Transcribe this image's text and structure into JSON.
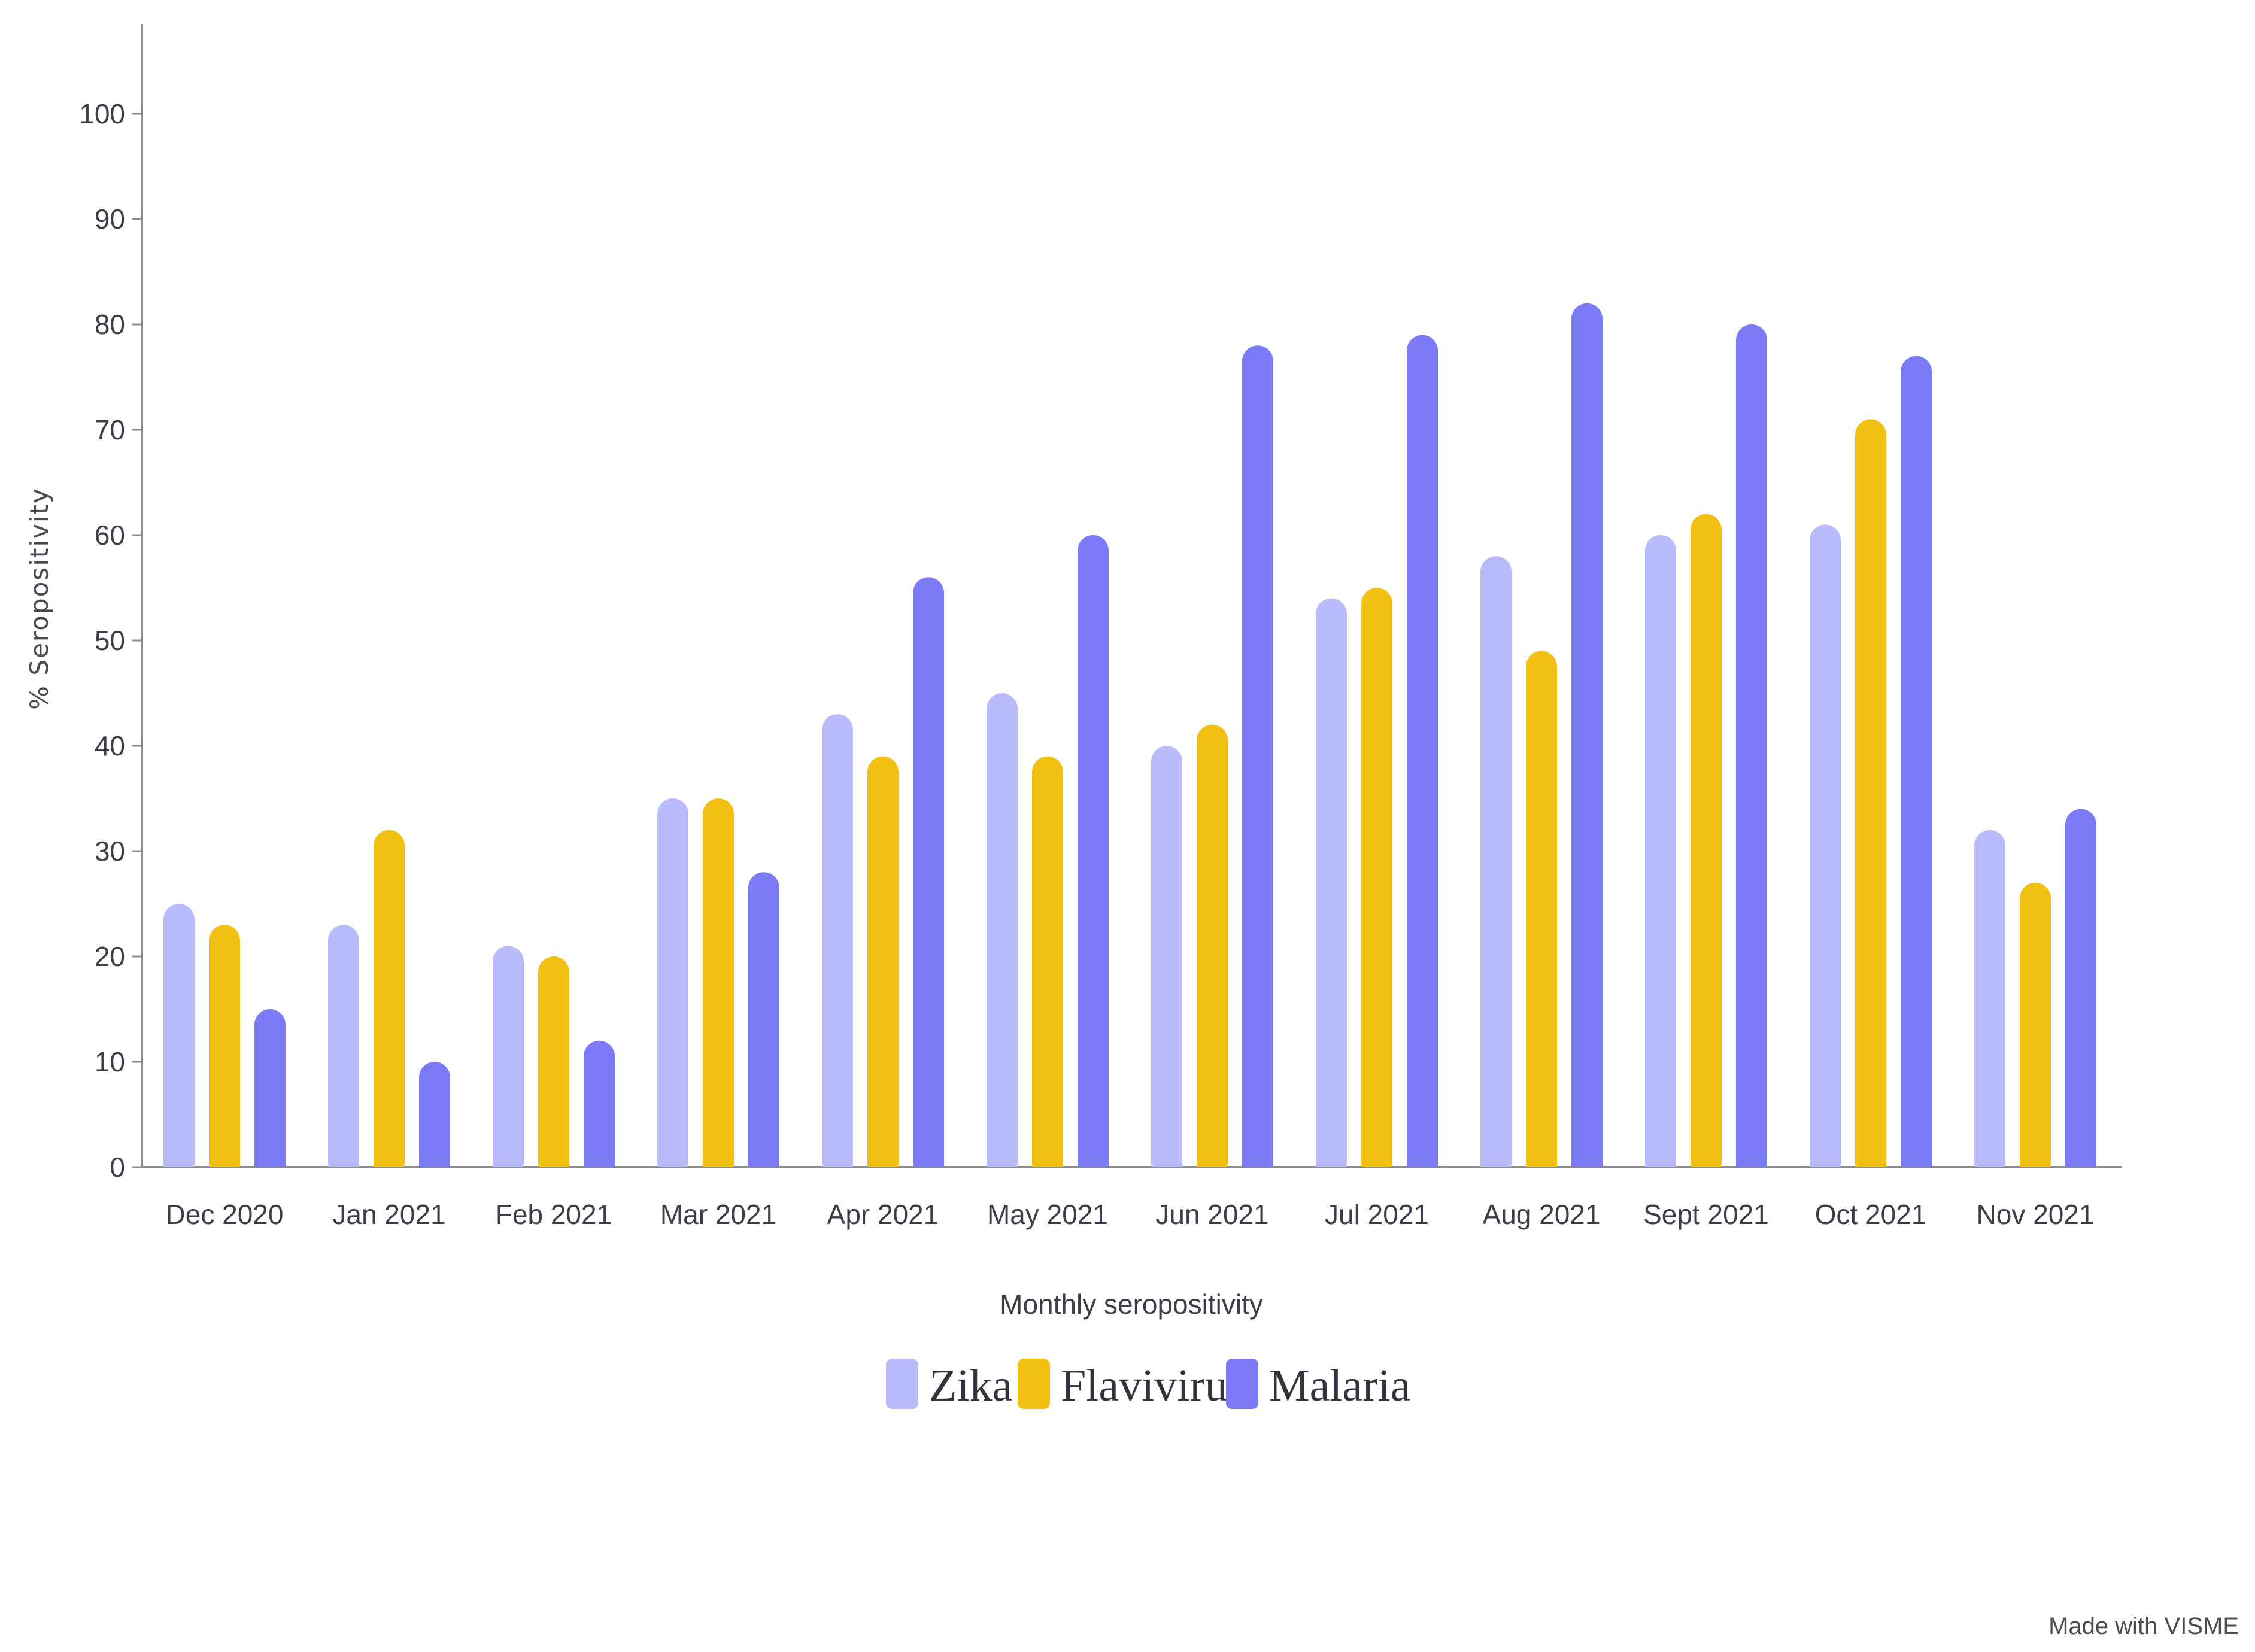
{
  "chart_data": {
    "type": "bar",
    "title": "",
    "xlabel": "Monthly seropositivity",
    "ylabel": "% Seropositivity",
    "ylim": [
      0,
      100
    ],
    "yticks": [
      0,
      10,
      20,
      30,
      40,
      50,
      60,
      70,
      80,
      90,
      100
    ],
    "grid": false,
    "legend_position": "bottom-center",
    "categories": [
      "Dec 2020",
      "Jan 2021",
      "Feb 2021",
      "Mar 2021",
      "Apr 2021",
      "May 2021",
      "Jun 2021",
      "Jul 2021",
      "Aug 2021",
      "Sept 2021",
      "Oct 2021",
      "Nov 2021"
    ],
    "series": [
      {
        "name": "Zika",
        "color": "#b9bbfb",
        "values": [
          25,
          23,
          21,
          35,
          43,
          45,
          40,
          54,
          58,
          60,
          61,
          32
        ]
      },
      {
        "name": "Flavivirus",
        "color": "#f2c013",
        "values": [
          23,
          32,
          20,
          35,
          39,
          39,
          42,
          55,
          49,
          62,
          71,
          27
        ]
      },
      {
        "name": "Malaria",
        "color": "#7b7bf7",
        "values": [
          15,
          10,
          12,
          28,
          56,
          60,
          78,
          79,
          82,
          80,
          77,
          34
        ]
      }
    ]
  },
  "credit": "Made with VISME"
}
